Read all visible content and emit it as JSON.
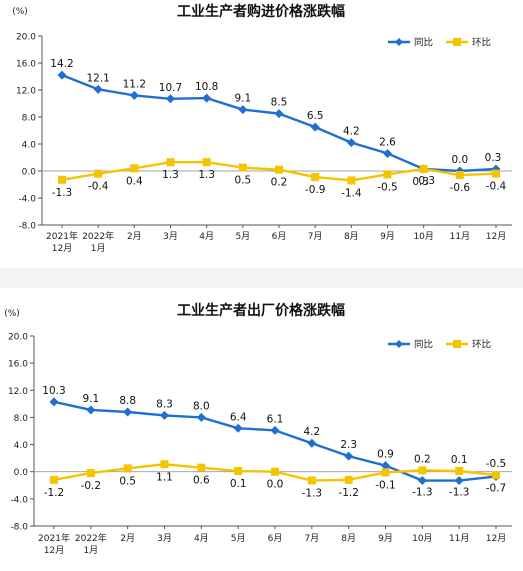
{
  "chart_data": [
    {
      "type": "line",
      "title": "工业生产者购进价格涨跌幅",
      "ylabel": "(%)",
      "categories": [
        "2021年\n12月",
        "2022年\n1月",
        "2月",
        "3月",
        "4月",
        "5月",
        "6月",
        "7月",
        "8月",
        "9月",
        "10月",
        "11月",
        "12月"
      ],
      "series": [
        {
          "name": "同比",
          "color": "#1f6fd0",
          "marker": "diamond",
          "values": [
            14.2,
            12.1,
            11.2,
            10.7,
            10.8,
            9.1,
            8.5,
            6.5,
            4.2,
            2.6,
            0.3,
            0.0,
            0.3
          ],
          "labels": [
            "14.2",
            "12.1",
            "11.2",
            "10.7",
            "10.8",
            "9.1",
            "8.5",
            "6.5",
            "4.2",
            "2.6",
            "0.3",
            "0.0",
            "0.3"
          ]
        },
        {
          "name": "环比",
          "color": "#f5c400",
          "marker": "square",
          "values": [
            -1.3,
            -0.4,
            0.4,
            1.3,
            1.3,
            0.5,
            0.2,
            -0.9,
            -1.4,
            -0.5,
            0.3,
            -0.6,
            -0.4
          ],
          "labels": [
            "-1.3",
            "-0.4",
            "0.4",
            "1.3",
            "1.3",
            "0.5",
            "0.2",
            "-0.9",
            "-1.4",
            "-0.5",
            "0.3",
            "-0.6",
            "-0.4"
          ]
        }
      ],
      "ylim": [
        -8.0,
        20.0
      ],
      "yticks": [
        "20.0",
        "16.0",
        "12.0",
        "8.0",
        "4.0",
        "0.0",
        "-4.0",
        "-8.0"
      ],
      "ytick_values": [
        20,
        16,
        12,
        8,
        4,
        0,
        -4,
        -8
      ],
      "grid": false,
      "legend": "top-right"
    },
    {
      "type": "line",
      "title": "工业生产者出厂价格涨跌幅",
      "ylabel": "(%)",
      "categories": [
        "2021年\n12月",
        "2022年\n1月",
        "2月",
        "3月",
        "4月",
        "5月",
        "6月",
        "7月",
        "8月",
        "9月",
        "10月",
        "11月",
        "12月"
      ],
      "series": [
        {
          "name": "同比",
          "color": "#1f6fd0",
          "marker": "diamond",
          "values": [
            10.3,
            9.1,
            8.8,
            8.3,
            8.0,
            6.4,
            6.1,
            4.2,
            2.3,
            0.9,
            -1.3,
            -1.3,
            -0.7
          ],
          "labels": [
            "10.3",
            "9.1",
            "8.8",
            "8.3",
            "8.0",
            "6.4",
            "6.1",
            "4.2",
            "2.3",
            "0.9",
            "-1.3",
            "-1.3",
            "-0.7"
          ]
        },
        {
          "name": "环比",
          "color": "#f5c400",
          "marker": "square",
          "values": [
            -1.2,
            -0.2,
            0.5,
            1.1,
            0.6,
            0.1,
            0.0,
            -1.3,
            -1.2,
            -0.1,
            0.2,
            0.1,
            -0.5
          ],
          "labels": [
            "-1.2",
            "-0.2",
            "0.5",
            "1.1",
            "0.6",
            "0.1",
            "0.0",
            "-1.3",
            "-1.2",
            "-0.1",
            "0.2",
            "0.1",
            "-0.5"
          ]
        }
      ],
      "ylim": [
        -8.0,
        20.0
      ],
      "yticks": [
        "20.0",
        "16.0",
        "12.0",
        "8.0",
        "4.0",
        "0.0",
        "-4.0",
        "-8.0"
      ],
      "ytick_values": [
        20,
        16,
        12,
        8,
        4,
        0,
        -4,
        -8
      ],
      "grid": false,
      "legend": "top-right"
    }
  ]
}
